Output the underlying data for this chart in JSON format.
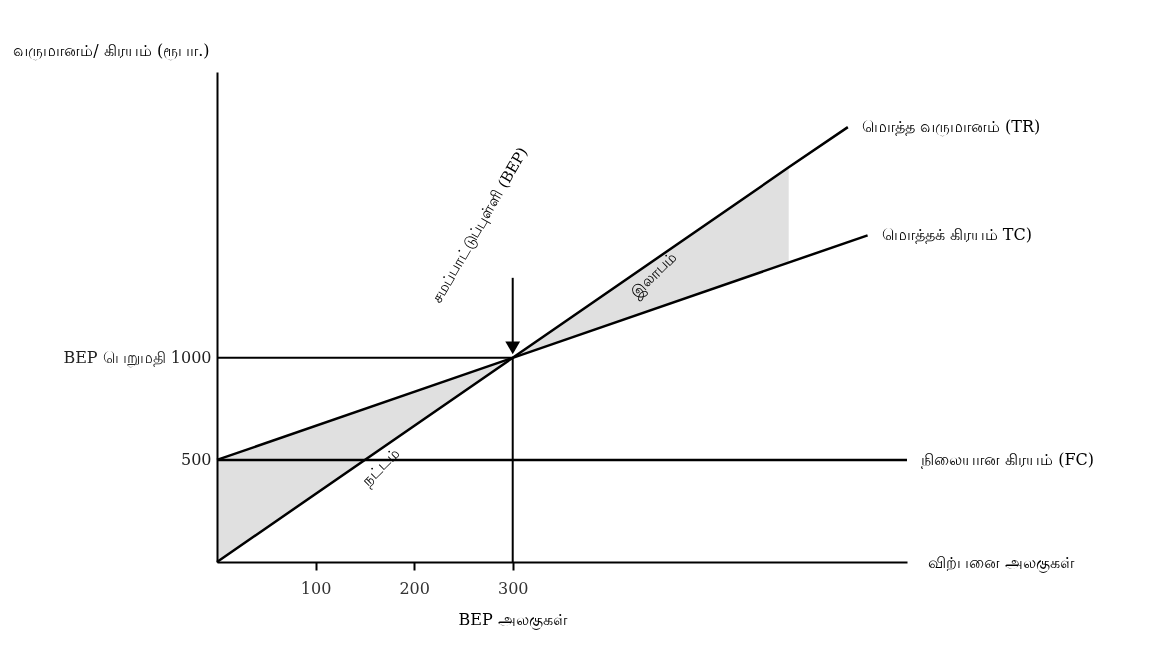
{
  "chart_data": {
    "type": "line",
    "ylabel": "வருமானம்/ கிரயம் (ரூபா.)",
    "xlabel": "விற்பனை அலகுகள்",
    "xlim": [
      0,
      700
    ],
    "xticks": [
      100,
      200,
      300
    ],
    "ylim": [
      0,
      2400
    ],
    "yticks": [
      500,
      {
        "value": 1000,
        "label": "BEP பெறுமதி 1000"
      }
    ],
    "grid": false,
    "series": [
      {
        "name": "மொத்த வருமானம் (TR)",
        "color": "#000000",
        "x": [
          0,
          300,
          580,
          640
        ],
        "values": [
          0,
          1000,
          1933,
          2130
        ],
        "lower": [
          0,
          1000,
          1467,
          null
        ],
        "upper": [
          500,
          1000,
          1933,
          null
        ]
      },
      {
        "name": "மொத்தக் கிரயம் TC)",
        "color": "#000000",
        "x": [
          0,
          660
        ],
        "values": [
          500,
          1600
        ]
      },
      {
        "name": "நிலையான கிரயம் (FC)",
        "color": "#000000",
        "x": [
          0,
          700
        ],
        "values": [
          500,
          500
        ]
      }
    ],
    "ref_lines": [
      {
        "axis": "x",
        "value": 300
      },
      {
        "axis": "y",
        "value": 1000
      }
    ],
    "annotations": [
      "சமப்பாட்டுப்புள்ளி (BEP)",
      "நட்டம்",
      "இலாபம்",
      "BEP அலகுகள்"
    ]
  }
}
